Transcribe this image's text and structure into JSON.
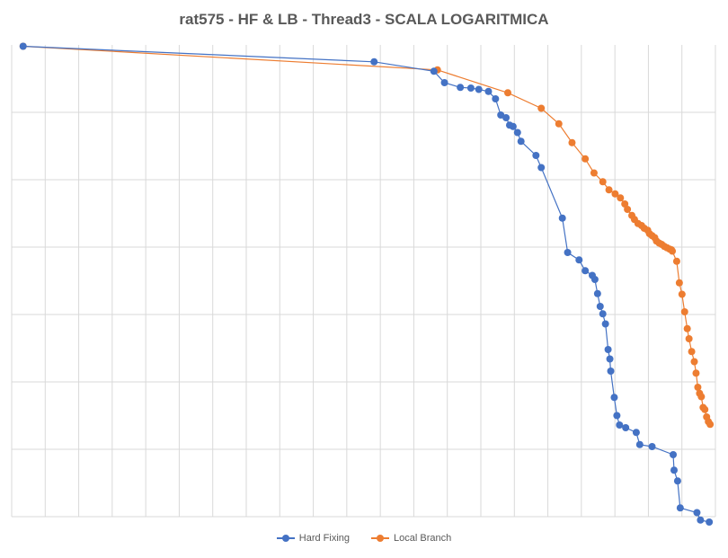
{
  "chart_data": {
    "type": "scatter",
    "title": "rat575 - HF & LB - Thread3 - SCALA LOGARITMICA",
    "xlabel": "",
    "ylabel": "",
    "y_scale": "log",
    "grid": true,
    "legend_position": "bottom",
    "x_axis_labels_visible": false,
    "y_axis_labels_visible": false,
    "series": [
      {
        "name": "Hard Fixing",
        "color": "#4472C4",
        "points": [
          [
            13.0,
            6.98
          ],
          [
            412.0,
            6.75
          ],
          [
            480.0,
            6.61
          ],
          [
            492.0,
            6.44
          ],
          [
            510.0,
            6.37
          ],
          [
            522.0,
            6.36
          ],
          [
            531.0,
            6.34
          ],
          [
            542.0,
            6.31
          ],
          [
            550.0,
            6.2
          ],
          [
            556.0,
            5.96
          ],
          [
            562.0,
            5.92
          ],
          [
            566.0,
            5.81
          ],
          [
            570.0,
            5.79
          ],
          [
            575.0,
            5.7
          ],
          [
            579.0,
            5.57
          ],
          [
            596.0,
            5.36
          ],
          [
            602.0,
            5.18
          ],
          [
            626.0,
            4.43
          ],
          [
            632.0,
            3.92
          ],
          [
            645.0,
            3.81
          ],
          [
            652.0,
            3.65
          ],
          [
            660.0,
            3.58
          ],
          [
            663.0,
            3.52
          ],
          [
            666.0,
            3.31
          ],
          [
            669.0,
            3.12
          ],
          [
            672.0,
            3.01
          ],
          [
            675.0,
            2.86
          ],
          [
            678.0,
            2.48
          ],
          [
            680.0,
            2.34
          ],
          [
            681.0,
            2.16
          ],
          [
            685.0,
            1.77
          ],
          [
            688.0,
            1.5
          ],
          [
            691.0,
            1.36
          ],
          [
            698.0,
            1.32
          ],
          [
            710.0,
            1.25
          ],
          [
            714.0,
            1.07
          ],
          [
            728.0,
            1.04
          ],
          [
            752.0,
            0.92
          ],
          [
            753.0,
            0.69
          ],
          [
            757.0,
            0.53
          ],
          [
            760.0,
            0.13
          ],
          [
            779.0,
            0.06
          ],
          [
            783.0,
            -0.05
          ],
          [
            793.0,
            -0.08
          ]
        ]
      },
      {
        "name": "Local Branch",
        "color": "#ED7D31",
        "points": [
          [
            13.0,
            6.98
          ],
          [
            484.0,
            6.63
          ],
          [
            564.0,
            6.29
          ],
          [
            602.0,
            6.06
          ],
          [
            622.0,
            5.83
          ],
          [
            637.0,
            5.55
          ],
          [
            652.0,
            5.31
          ],
          [
            662.0,
            5.1
          ],
          [
            672.0,
            4.97
          ],
          [
            679.0,
            4.85
          ],
          [
            686.0,
            4.79
          ],
          [
            692.0,
            4.73
          ],
          [
            697.0,
            4.64
          ],
          [
            700.0,
            4.56
          ],
          [
            705.0,
            4.47
          ],
          [
            708.0,
            4.41
          ],
          [
            712.0,
            4.35
          ],
          [
            716.0,
            4.32
          ],
          [
            719.0,
            4.28
          ],
          [
            723.0,
            4.25
          ],
          [
            725.0,
            4.2
          ],
          [
            728.0,
            4.17
          ],
          [
            731.0,
            4.14
          ],
          [
            733.0,
            4.09
          ],
          [
            736.0,
            4.06
          ],
          [
            739.0,
            4.04
          ],
          [
            742.0,
            4.01
          ],
          [
            745.0,
            3.99
          ],
          [
            748.0,
            3.97
          ],
          [
            750.0,
            3.96
          ],
          [
            751.0,
            3.94
          ],
          [
            756.0,
            3.79
          ],
          [
            759.0,
            3.47
          ],
          [
            762.0,
            3.3
          ],
          [
            765.0,
            3.04
          ],
          [
            768.0,
            2.79
          ],
          [
            770.0,
            2.64
          ],
          [
            773.0,
            2.45
          ],
          [
            776.0,
            2.3
          ],
          [
            778.0,
            2.13
          ],
          [
            780.0,
            1.92
          ],
          [
            782.0,
            1.83
          ],
          [
            784.0,
            1.78
          ],
          [
            786.0,
            1.62
          ],
          [
            788.0,
            1.59
          ],
          [
            790.0,
            1.48
          ],
          [
            792.0,
            1.41
          ],
          [
            794.0,
            1.37
          ]
        ]
      }
    ]
  }
}
